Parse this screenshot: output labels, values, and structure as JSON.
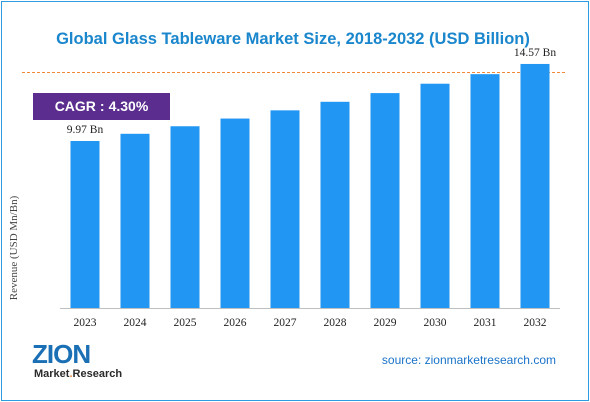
{
  "title": "Global Glass Tableware Market Size, 2018-2032 (USD Billion)",
  "cagr": {
    "label": "CAGR",
    "value": "4.30%"
  },
  "source": "source: zionmarketresearch.com",
  "logo": {
    "main": "ZION",
    "sub_a": "Market",
    "sub_b": "Research"
  },
  "colors": {
    "bar": "#2196f3",
    "title": "#1a86cc",
    "badge": "#5a2d8e",
    "divider": "#f08a3a"
  },
  "chart_data": {
    "type": "bar",
    "ylabel": "Revenue (USD Mn/Bn)",
    "categories": [
      "2023",
      "2024",
      "2025",
      "2026",
      "2027",
      "2028",
      "2029",
      "2030",
      "2031",
      "2032"
    ],
    "values": [
      9.97,
      10.4,
      10.85,
      11.31,
      11.8,
      12.31,
      12.83,
      13.39,
      13.96,
      14.57
    ],
    "data_labels": [
      {
        "index": 0,
        "text": "9.97 Bn"
      },
      {
        "index": 9,
        "text": "14.57 Bn"
      }
    ],
    "ylim": [
      0,
      16
    ],
    "grid": false,
    "legend": "none"
  }
}
